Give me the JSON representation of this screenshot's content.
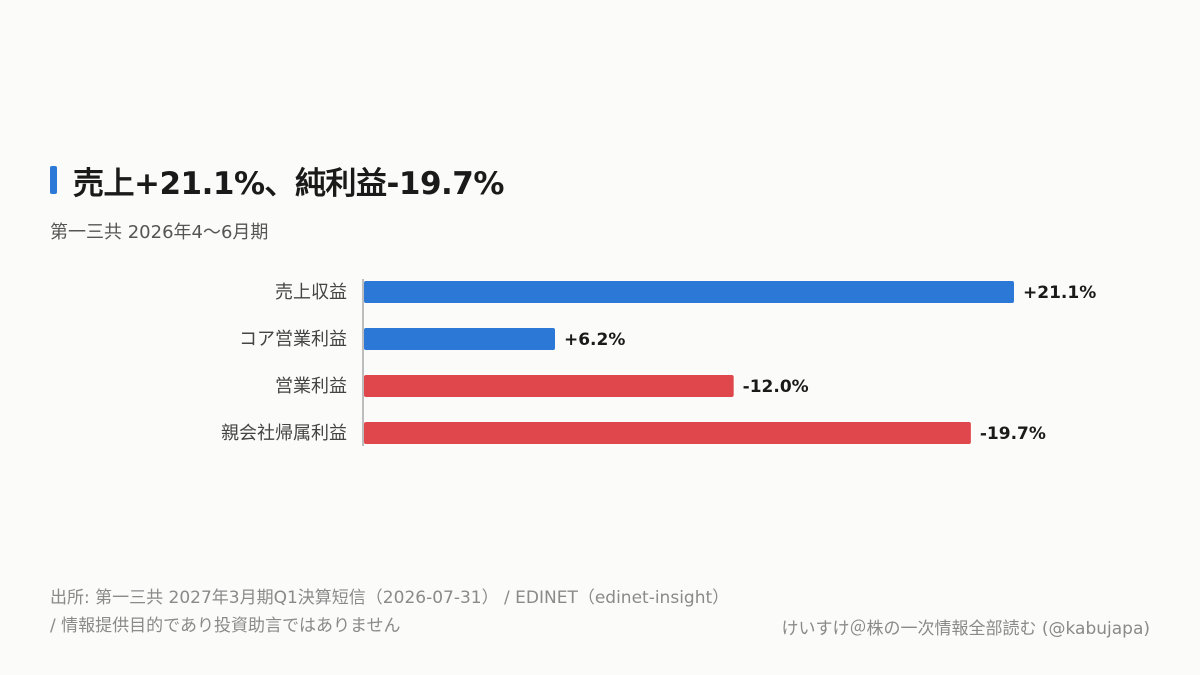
{
  "header": {
    "title": "売上+21.1%、純利益-19.7%",
    "subtitle": "第一三共 2026年4〜6月期"
  },
  "colors": {
    "accent": "#2b78d6",
    "positive": "#2b78d6",
    "negative": "#e0474c",
    "axis": "#bdbdbd"
  },
  "chart_data": {
    "type": "bar",
    "orientation": "horizontal",
    "categories": [
      "売上収益",
      "コア営業利益",
      "営業利益",
      "親会社帰属利益"
    ],
    "values": [
      21.1,
      6.2,
      -12.0,
      -19.7
    ],
    "value_labels": [
      "+21.1%",
      "+6.2%",
      "-12.0%",
      "-19.7%"
    ],
    "bar_length": "absolute value",
    "unit": "%"
  },
  "footer": {
    "source": "出所: 第一三共 2027年3月期Q1決算短信（2026-07-31） / EDINET（edinet-insight） / 情報提供目的であり投資助言ではありません",
    "credit": "けいすけ＠株の一次情報全部読む (@kabujapa)"
  }
}
